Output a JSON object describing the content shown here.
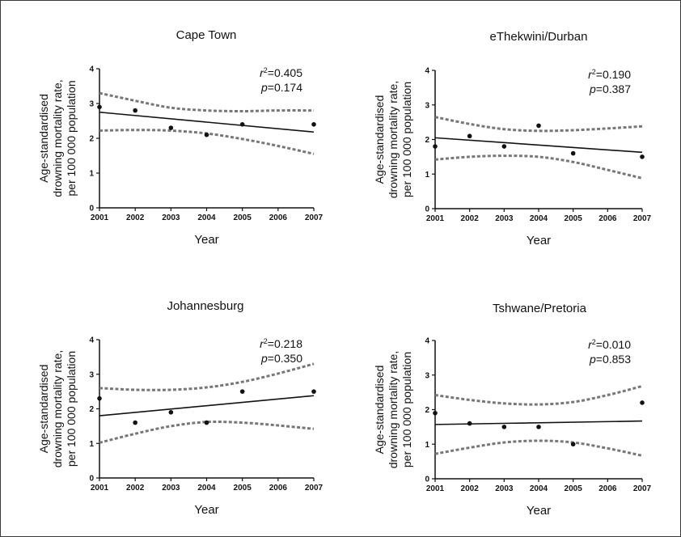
{
  "chart_data": [
    {
      "type": "scatter",
      "title": "Cape Town",
      "xlabel": "Year",
      "ylabel": [
        "Age-standardised",
        "drowning mortality rate,",
        "per 100 000 population"
      ],
      "r2_label": "=0.405",
      "p_label": "=0.174",
      "xlim": [
        2001,
        2007
      ],
      "ylim": [
        0,
        4
      ],
      "xticks": [
        "2001",
        "2002",
        "2003",
        "2004",
        "2005",
        "2006",
        "2007"
      ],
      "yticks": [
        "0",
        "1",
        "2",
        "3",
        "4"
      ],
      "points": [
        {
          "x": 2001,
          "y": 2.9
        },
        {
          "x": 2002,
          "y": 2.8
        },
        {
          "x": 2003,
          "y": 2.3
        },
        {
          "x": 2004,
          "y": 2.1
        },
        {
          "x": 2005,
          "y": 2.4
        },
        {
          "x": 2007,
          "y": 2.4
        }
      ],
      "fit": [
        {
          "x": 2001,
          "y": 2.75
        },
        {
          "x": 2007,
          "y": 2.18
        }
      ],
      "ci_upper": [
        {
          "x": 2001,
          "y": 3.3
        },
        {
          "x": 2002,
          "y": 3.08
        },
        {
          "x": 2003,
          "y": 2.88
        },
        {
          "x": 2004,
          "y": 2.8
        },
        {
          "x": 2005,
          "y": 2.78
        },
        {
          "x": 2006,
          "y": 2.8
        },
        {
          "x": 2007,
          "y": 2.8
        }
      ],
      "ci_lower": [
        {
          "x": 2001,
          "y": 2.22
        },
        {
          "x": 2002,
          "y": 2.24
        },
        {
          "x": 2003,
          "y": 2.22
        },
        {
          "x": 2004,
          "y": 2.14
        },
        {
          "x": 2005,
          "y": 1.98
        },
        {
          "x": 2006,
          "y": 1.78
        },
        {
          "x": 2007,
          "y": 1.55
        }
      ]
    },
    {
      "type": "scatter",
      "title": "eThekwini/Durban",
      "xlabel": "Year",
      "ylabel": [
        "Age-standardised",
        "drowning mortality rate,",
        "per 100 000 population"
      ],
      "r2_label": "=0.190",
      "p_label": "=0.387",
      "xlim": [
        2001,
        2007
      ],
      "ylim": [
        0,
        4
      ],
      "xticks": [
        "2001",
        "2002",
        "2003",
        "2004",
        "2005",
        "2006",
        "2007"
      ],
      "yticks": [
        "0",
        "1",
        "2",
        "3",
        "4"
      ],
      "points": [
        {
          "x": 2001,
          "y": 1.8
        },
        {
          "x": 2002,
          "y": 2.1
        },
        {
          "x": 2003,
          "y": 1.8
        },
        {
          "x": 2004,
          "y": 2.4
        },
        {
          "x": 2005,
          "y": 1.6
        },
        {
          "x": 2007,
          "y": 1.5
        }
      ],
      "fit": [
        {
          "x": 2001,
          "y": 2.05
        },
        {
          "x": 2007,
          "y": 1.63
        }
      ],
      "ci_upper": [
        {
          "x": 2001,
          "y": 2.65
        },
        {
          "x": 2002,
          "y": 2.45
        },
        {
          "x": 2003,
          "y": 2.3
        },
        {
          "x": 2004,
          "y": 2.25
        },
        {
          "x": 2005,
          "y": 2.27
        },
        {
          "x": 2006,
          "y": 2.32
        },
        {
          "x": 2007,
          "y": 2.38
        }
      ],
      "ci_lower": [
        {
          "x": 2001,
          "y": 1.42
        },
        {
          "x": 2002,
          "y": 1.5
        },
        {
          "x": 2003,
          "y": 1.53
        },
        {
          "x": 2004,
          "y": 1.5
        },
        {
          "x": 2005,
          "y": 1.35
        },
        {
          "x": 2006,
          "y": 1.12
        },
        {
          "x": 2007,
          "y": 0.88
        }
      ]
    },
    {
      "type": "scatter",
      "title": "Johannesburg",
      "xlabel": "Year",
      "ylabel": [
        "Age-standardised",
        "drowning mortality rate,",
        "per 100 000 population"
      ],
      "r2_label": "=0.218",
      "p_label": "=0.350",
      "xlim": [
        2001,
        2007
      ],
      "ylim": [
        0,
        4
      ],
      "xticks": [
        "2001",
        "2002",
        "2003",
        "2004",
        "2005",
        "2006",
        "2007"
      ],
      "yticks": [
        "0",
        "1",
        "2",
        "3",
        "4"
      ],
      "points": [
        {
          "x": 2001,
          "y": 2.3
        },
        {
          "x": 2002,
          "y": 1.6
        },
        {
          "x": 2003,
          "y": 1.9
        },
        {
          "x": 2004,
          "y": 1.6
        },
        {
          "x": 2005,
          "y": 2.5
        },
        {
          "x": 2007,
          "y": 2.5
        }
      ],
      "fit": [
        {
          "x": 2001,
          "y": 1.8
        },
        {
          "x": 2007,
          "y": 2.38
        }
      ],
      "ci_upper": [
        {
          "x": 2001,
          "y": 2.6
        },
        {
          "x": 2002,
          "y": 2.55
        },
        {
          "x": 2003,
          "y": 2.55
        },
        {
          "x": 2004,
          "y": 2.62
        },
        {
          "x": 2005,
          "y": 2.78
        },
        {
          "x": 2006,
          "y": 3.02
        },
        {
          "x": 2007,
          "y": 3.3
        }
      ],
      "ci_lower": [
        {
          "x": 2001,
          "y": 1.02
        },
        {
          "x": 2002,
          "y": 1.28
        },
        {
          "x": 2003,
          "y": 1.5
        },
        {
          "x": 2004,
          "y": 1.62
        },
        {
          "x": 2005,
          "y": 1.6
        },
        {
          "x": 2006,
          "y": 1.52
        },
        {
          "x": 2007,
          "y": 1.42
        }
      ]
    },
    {
      "type": "scatter",
      "title": "Tshwane/Pretoria",
      "xlabel": "Year",
      "ylabel": [
        "Age-standardised",
        "drowning mortality rate,",
        "per 100 000 population"
      ],
      "r2_label": "=0.010",
      "p_label": "=0.853",
      "xlim": [
        2001,
        2007
      ],
      "ylim": [
        0,
        4
      ],
      "xticks": [
        "2001",
        "2002",
        "2003",
        "2004",
        "2005",
        "2006",
        "2007"
      ],
      "yticks": [
        "0",
        "1",
        "2",
        "3",
        "4"
      ],
      "points": [
        {
          "x": 2001,
          "y": 1.9
        },
        {
          "x": 2002,
          "y": 1.6
        },
        {
          "x": 2003,
          "y": 1.5
        },
        {
          "x": 2004,
          "y": 1.5
        },
        {
          "x": 2005,
          "y": 1.0
        },
        {
          "x": 2007,
          "y": 2.2
        }
      ],
      "fit": [
        {
          "x": 2001,
          "y": 1.57
        },
        {
          "x": 2007,
          "y": 1.67
        }
      ],
      "ci_upper": [
        {
          "x": 2001,
          "y": 2.42
        },
        {
          "x": 2002,
          "y": 2.28
        },
        {
          "x": 2003,
          "y": 2.18
        },
        {
          "x": 2004,
          "y": 2.15
        },
        {
          "x": 2005,
          "y": 2.22
        },
        {
          "x": 2006,
          "y": 2.42
        },
        {
          "x": 2007,
          "y": 2.68
        }
      ],
      "ci_lower": [
        {
          "x": 2001,
          "y": 0.72
        },
        {
          "x": 2002,
          "y": 0.9
        },
        {
          "x": 2003,
          "y": 1.05
        },
        {
          "x": 2004,
          "y": 1.1
        },
        {
          "x": 2005,
          "y": 1.05
        },
        {
          "x": 2006,
          "y": 0.88
        },
        {
          "x": 2007,
          "y": 0.67
        }
      ]
    }
  ]
}
